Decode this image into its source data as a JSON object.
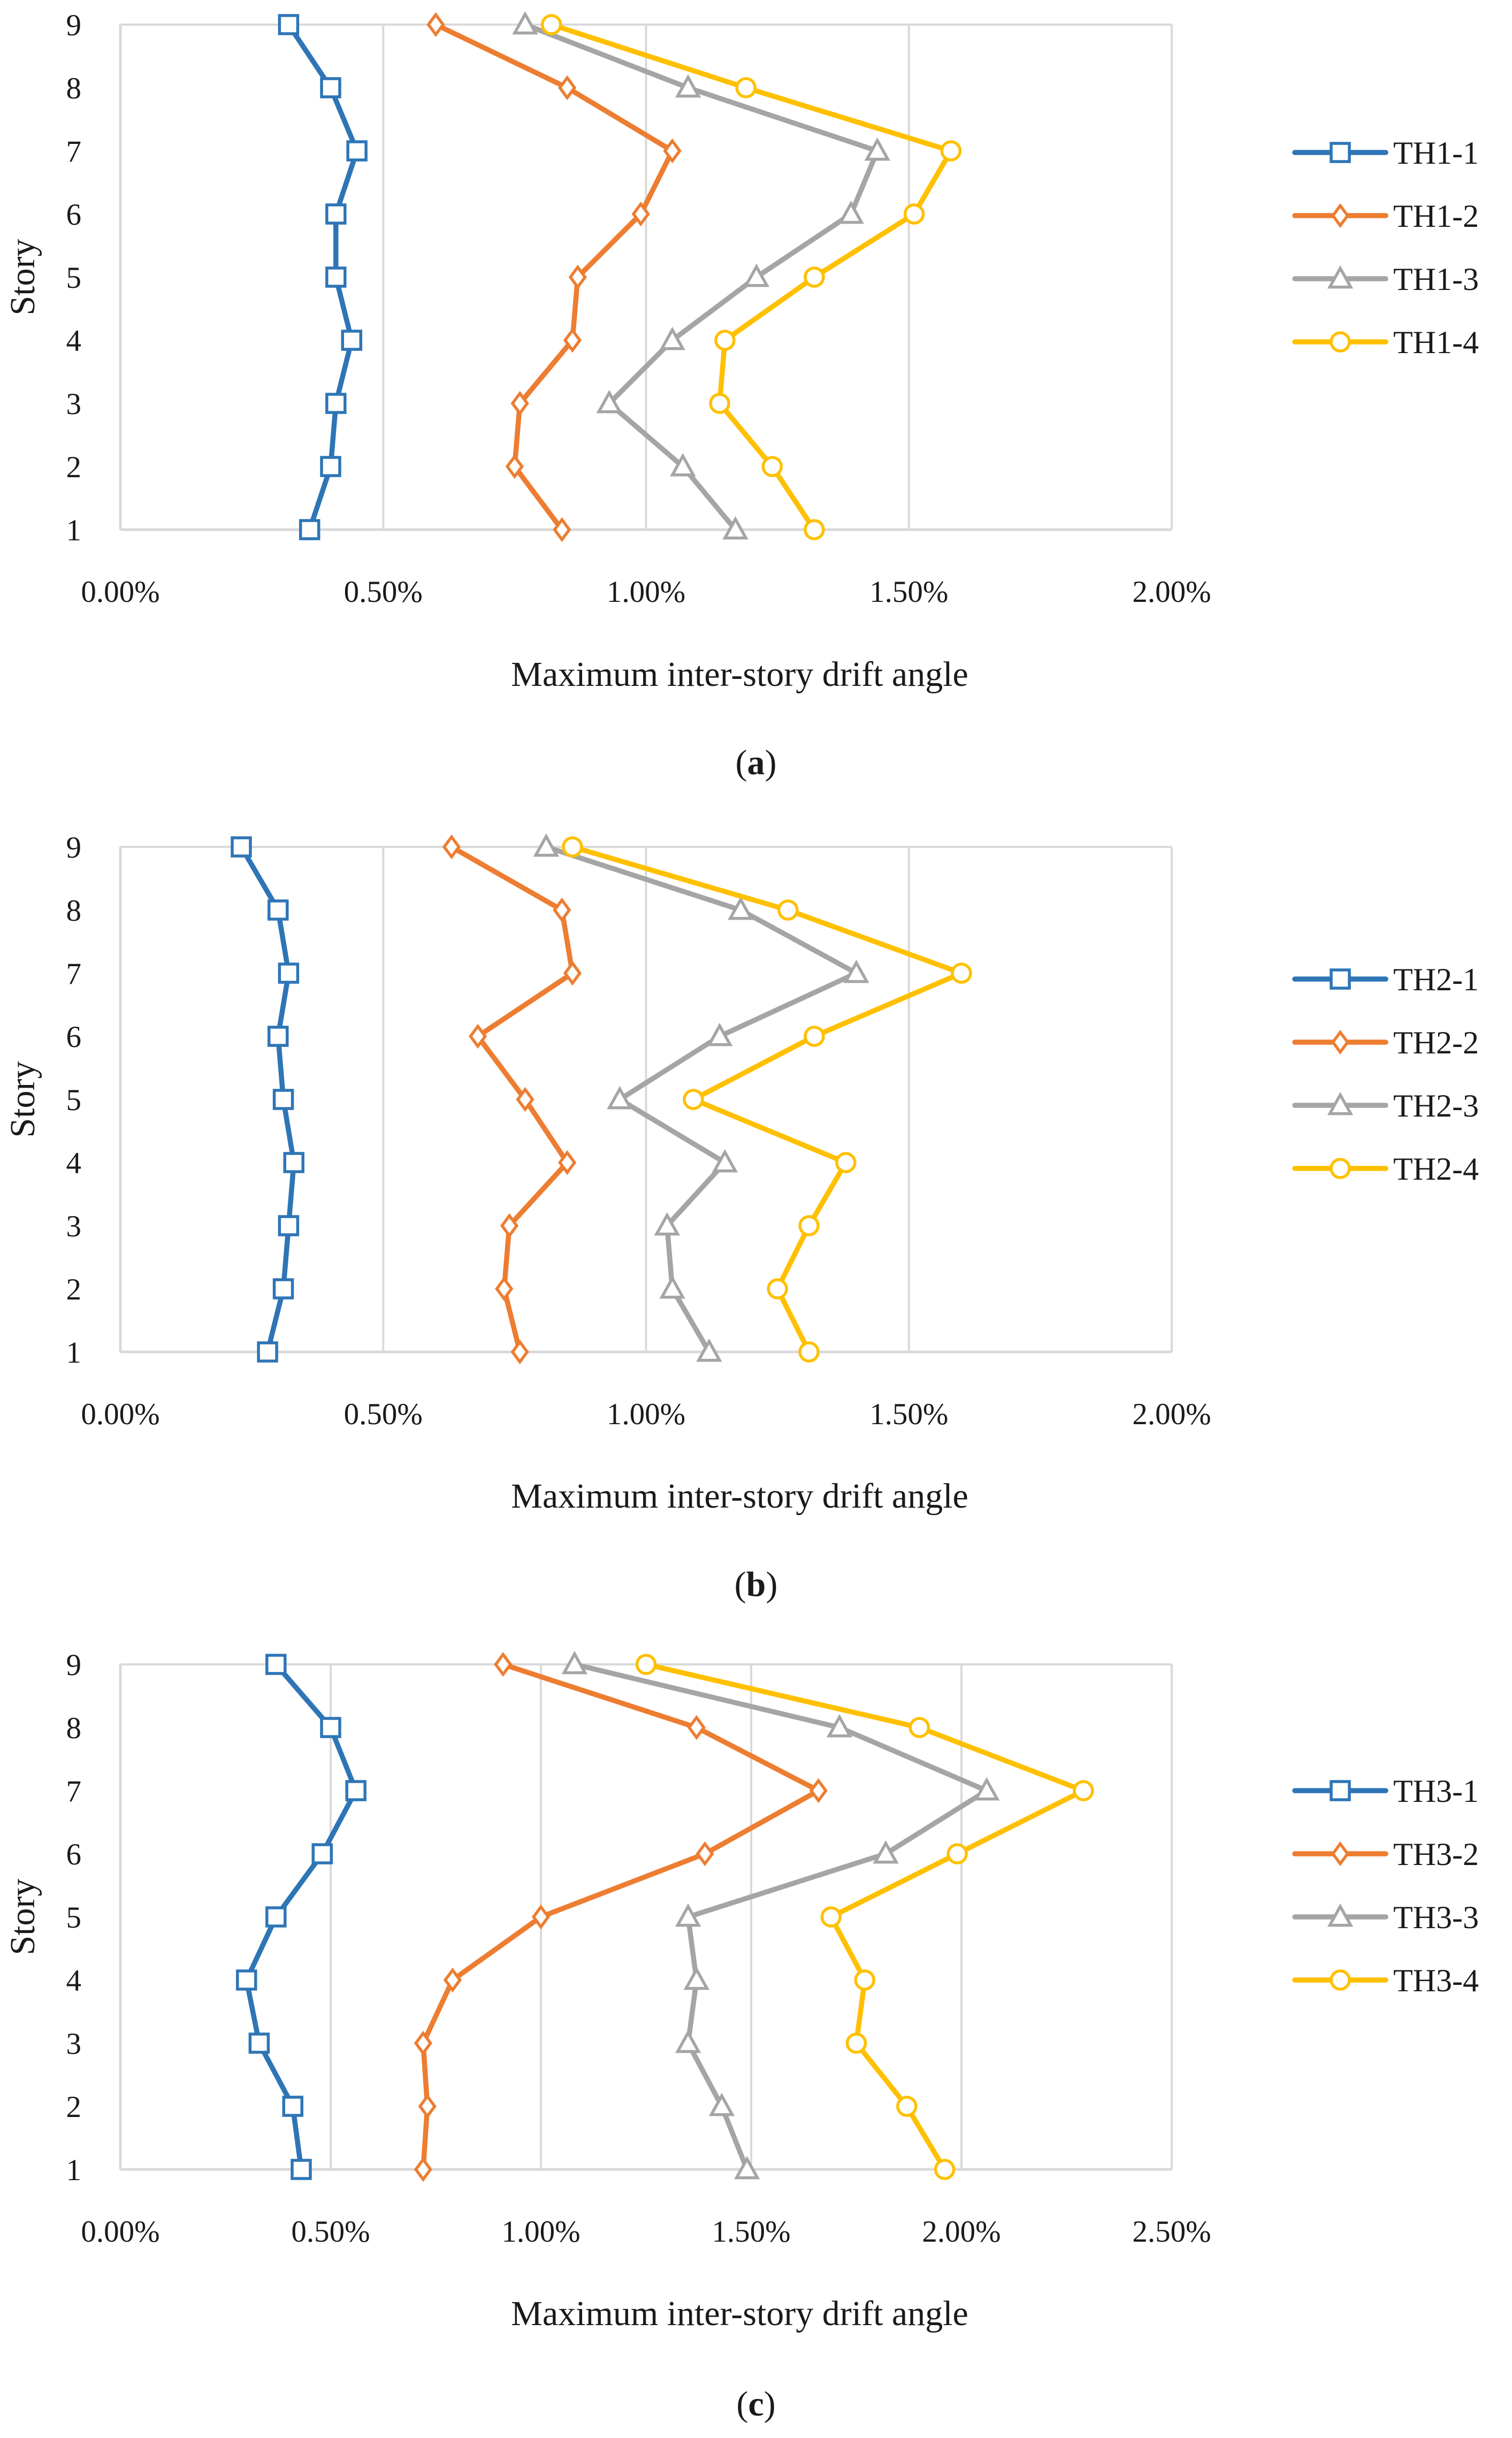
{
  "chart_data": [
    {
      "type": "line",
      "panel": "a",
      "caption_letter": "a",
      "caption_open": "(",
      "caption_close": ")",
      "xlabel": "Maximum inter-story drift angle",
      "ylabel": "Story",
      "xlim": [
        0,
        2.0
      ],
      "xticks": [
        0,
        0.5,
        1.0,
        1.5,
        2.0
      ],
      "xtick_labels": [
        "0.00%",
        "0.50%",
        "1.00%",
        "1.50%",
        "2.00%"
      ],
      "y_categories": [
        "1",
        "2",
        "3",
        "4",
        "5",
        "6",
        "7",
        "8",
        "9"
      ],
      "grid": "vertical",
      "legend_position": "right",
      "series": [
        {
          "name": "TH1-1",
          "color": "#2E75B6",
          "marker": "square",
          "x": [
            0.36,
            0.4,
            0.41,
            0.44,
            0.41,
            0.41,
            0.45,
            0.4,
            0.32
          ],
          "y": [
            1,
            2,
            3,
            4,
            5,
            6,
            7,
            8,
            9
          ]
        },
        {
          "name": "TH1-2",
          "color": "#ED7D31",
          "marker": "diamond",
          "x": [
            0.84,
            0.75,
            0.76,
            0.86,
            0.87,
            0.99,
            1.05,
            0.85,
            0.6
          ],
          "y": [
            1,
            2,
            3,
            4,
            5,
            6,
            7,
            8,
            9
          ]
        },
        {
          "name": "TH1-3",
          "color": "#A5A5A5",
          "marker": "triangle",
          "x": [
            1.17,
            1.07,
            0.93,
            1.05,
            1.21,
            1.39,
            1.44,
            1.08,
            0.77
          ],
          "y": [
            1,
            2,
            3,
            4,
            5,
            6,
            7,
            8,
            9
          ]
        },
        {
          "name": "TH1-4",
          "color": "#FFC000",
          "marker": "circle",
          "x": [
            1.32,
            1.24,
            1.14,
            1.15,
            1.32,
            1.51,
            1.58,
            1.19,
            0.82
          ],
          "y": [
            1,
            2,
            3,
            4,
            5,
            6,
            7,
            8,
            9
          ]
        }
      ]
    },
    {
      "type": "line",
      "panel": "b",
      "caption_letter": "b",
      "caption_open": "(",
      "caption_close": ")",
      "xlabel": "Maximum inter-story drift angle",
      "ylabel": "Story",
      "xlim": [
        0,
        2.0
      ],
      "xticks": [
        0,
        0.5,
        1.0,
        1.5,
        2.0
      ],
      "xtick_labels": [
        "0.00%",
        "0.50%",
        "1.00%",
        "1.50%",
        "2.00%"
      ],
      "y_categories": [
        "1",
        "2",
        "3",
        "4",
        "5",
        "6",
        "7",
        "8",
        "9"
      ],
      "grid": "vertical",
      "legend_position": "right",
      "series": [
        {
          "name": "TH2-1",
          "color": "#2E75B6",
          "marker": "square",
          "x": [
            0.28,
            0.31,
            0.32,
            0.33,
            0.31,
            0.3,
            0.32,
            0.3,
            0.23
          ],
          "y": [
            1,
            2,
            3,
            4,
            5,
            6,
            7,
            8,
            9
          ]
        },
        {
          "name": "TH2-2",
          "color": "#ED7D31",
          "marker": "diamond",
          "x": [
            0.76,
            0.73,
            0.74,
            0.85,
            0.77,
            0.68,
            0.86,
            0.84,
            0.63
          ],
          "y": [
            1,
            2,
            3,
            4,
            5,
            6,
            7,
            8,
            9
          ]
        },
        {
          "name": "TH2-3",
          "color": "#A5A5A5",
          "marker": "triangle",
          "x": [
            1.12,
            1.05,
            1.04,
            1.15,
            0.95,
            1.14,
            1.4,
            1.18,
            0.81
          ],
          "y": [
            1,
            2,
            3,
            4,
            5,
            6,
            7,
            8,
            9
          ]
        },
        {
          "name": "TH2-4",
          "color": "#FFC000",
          "marker": "circle",
          "x": [
            1.31,
            1.25,
            1.31,
            1.38,
            1.09,
            1.32,
            1.6,
            1.27,
            0.86
          ],
          "y": [
            1,
            2,
            3,
            4,
            5,
            6,
            7,
            8,
            9
          ]
        }
      ]
    },
    {
      "type": "line",
      "panel": "c",
      "caption_letter": "c",
      "caption_open": "(",
      "caption_close": ")",
      "xlabel": "Maximum inter-story drift angle",
      "ylabel": "Story",
      "xlim": [
        0,
        2.5
      ],
      "xticks": [
        0,
        0.5,
        1.0,
        1.5,
        2.0,
        2.5
      ],
      "xtick_labels": [
        "0.00%",
        "0.50%",
        "1.00%",
        "1.50%",
        "2.00%",
        "2.50%"
      ],
      "y_categories": [
        "1",
        "2",
        "3",
        "4",
        "5",
        "6",
        "7",
        "8",
        "9"
      ],
      "grid": "vertical",
      "legend_position": "right",
      "series": [
        {
          "name": "TH3-1",
          "color": "#2E75B6",
          "marker": "square",
          "x": [
            0.43,
            0.41,
            0.33,
            0.3,
            0.37,
            0.48,
            0.56,
            0.5,
            0.37
          ],
          "y": [
            1,
            2,
            3,
            4,
            5,
            6,
            7,
            8,
            9
          ]
        },
        {
          "name": "TH3-2",
          "color": "#ED7D31",
          "marker": "diamond",
          "x": [
            0.72,
            0.73,
            0.72,
            0.79,
            1.0,
            1.39,
            1.66,
            1.37,
            0.91
          ],
          "y": [
            1,
            2,
            3,
            4,
            5,
            6,
            7,
            8,
            9
          ]
        },
        {
          "name": "TH3-3",
          "color": "#A5A5A5",
          "marker": "triangle",
          "x": [
            1.49,
            1.43,
            1.35,
            1.37,
            1.35,
            1.82,
            2.06,
            1.71,
            1.08
          ],
          "y": [
            1,
            2,
            3,
            4,
            5,
            6,
            7,
            8,
            9
          ]
        },
        {
          "name": "TH3-4",
          "color": "#FFC000",
          "marker": "circle",
          "x": [
            1.96,
            1.87,
            1.75,
            1.77,
            1.69,
            1.99,
            2.29,
            1.9,
            1.25
          ],
          "y": [
            1,
            2,
            3,
            4,
            5,
            6,
            7,
            8,
            9
          ]
        }
      ]
    }
  ]
}
